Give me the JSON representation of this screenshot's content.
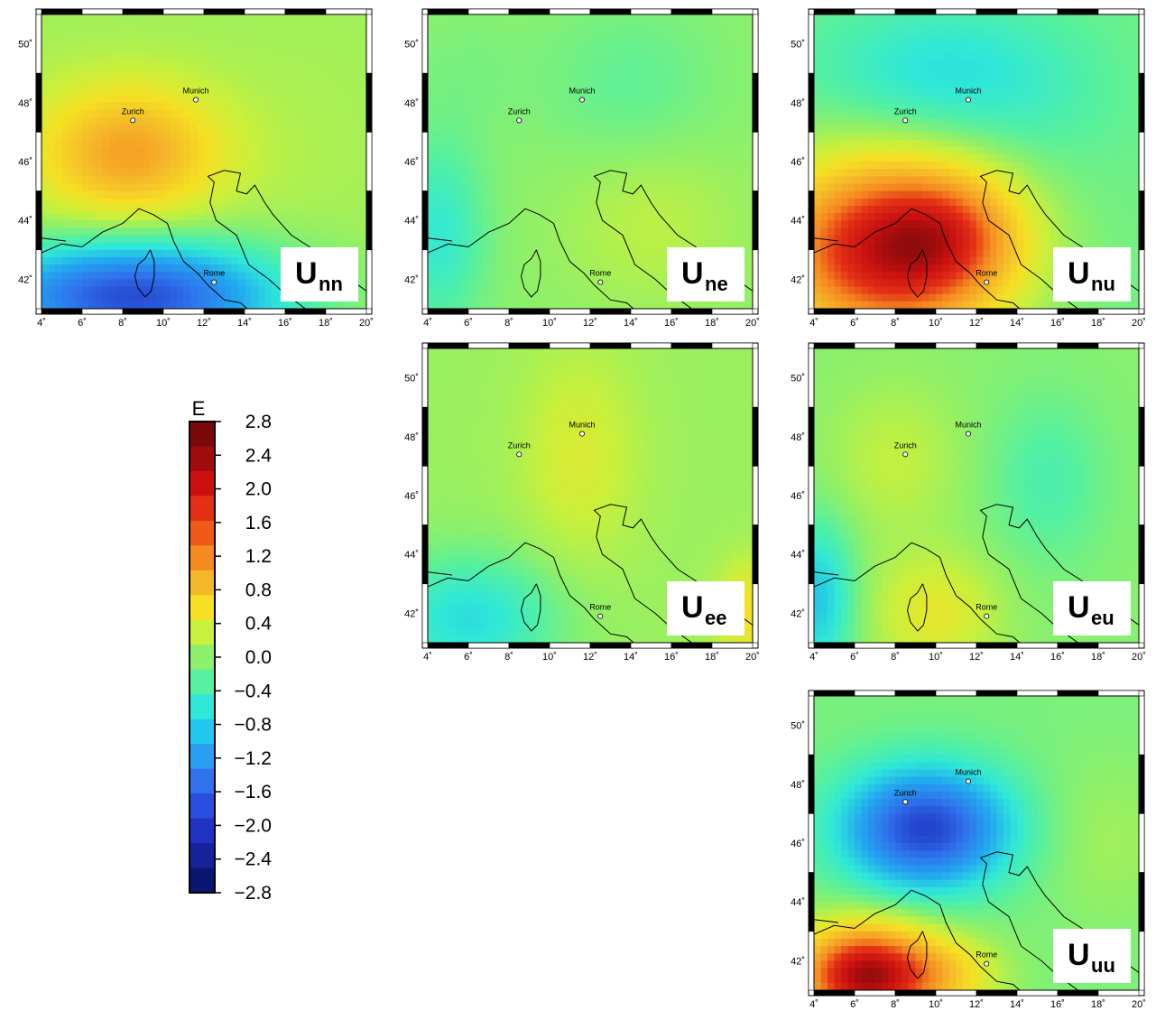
{
  "colorbar": {
    "title": "E",
    "ticks": [
      "2.8",
      "2.4",
      "2.0",
      "1.6",
      "1.2",
      "0.8",
      "0.4",
      "0.0",
      "−0.4",
      "−0.8",
      "−1.2",
      "−1.6",
      "−2.0",
      "−2.4",
      "−2.8"
    ],
    "range": [
      -2.8,
      2.8
    ],
    "colors": [
      "#7a0a0a",
      "#a00c0c",
      "#cc1010",
      "#e33015",
      "#ef5a17",
      "#f58a20",
      "#f5b82a",
      "#f5e023",
      "#c8f03c",
      "#8df06a",
      "#55f0a0",
      "#2fe8d8",
      "#22c8f0",
      "#2a9ef0",
      "#2f72ec",
      "#2a4fde",
      "#2032c2",
      "#15229a",
      "#0b1670"
    ]
  },
  "map": {
    "lon_ticks": [
      "4˚",
      "6˚",
      "8˚",
      "10˚",
      "12˚",
      "14˚",
      "16˚",
      "18˚",
      "20˚"
    ],
    "lat_ticks": [
      "50˚",
      "48˚",
      "46˚",
      "44˚",
      "42˚"
    ],
    "lon_range": [
      4,
      20
    ],
    "lat_range": [
      41,
      51
    ],
    "cities": [
      {
        "name": "Zurich",
        "lon": 8.5,
        "lat": 47.4
      },
      {
        "name": "Munich",
        "lon": 11.6,
        "lat": 48.1
      },
      {
        "name": "Rome",
        "lon": 12.5,
        "lat": 41.9
      }
    ]
  },
  "panels": [
    {
      "id": "Unn",
      "label_main": "U",
      "label_sub": "nn"
    },
    {
      "id": "Une",
      "label_main": "U",
      "label_sub": "ne"
    },
    {
      "id": "Unu",
      "label_main": "U",
      "label_sub": "nu"
    },
    {
      "id": "Uee",
      "label_main": "U",
      "label_sub": "ee"
    },
    {
      "id": "Ueu",
      "label_main": "U",
      "label_sub": "eu"
    },
    {
      "id": "Uuu",
      "label_main": "U",
      "label_sub": "uu"
    }
  ]
}
